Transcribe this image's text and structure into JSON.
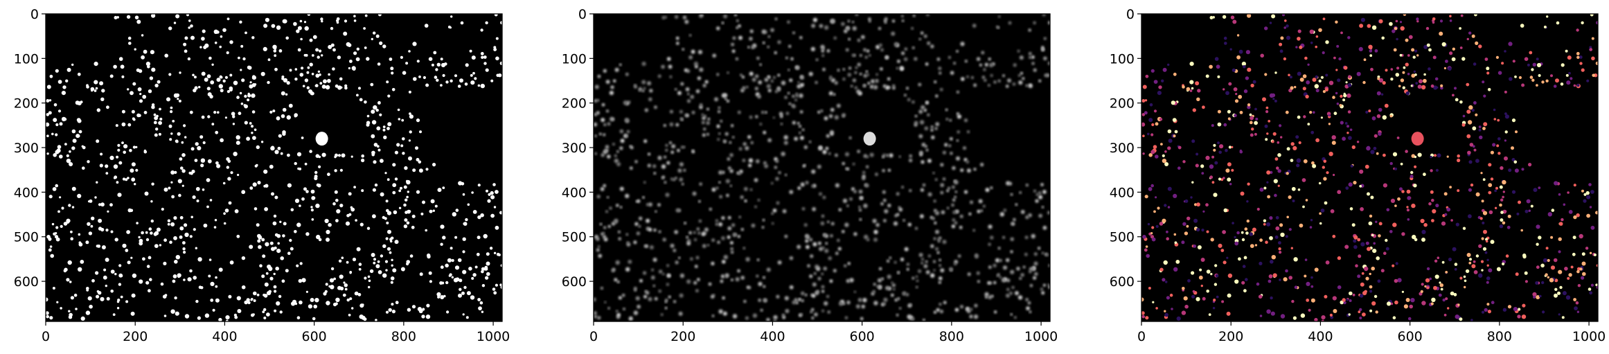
{
  "chart_data": [
    {
      "type": "heatmap",
      "title": "",
      "xlabel": "",
      "ylabel": "",
      "colormap": "binary",
      "xlim": [
        0,
        1020
      ],
      "ylim": [
        690,
        0
      ],
      "x_ticks": [
        "0",
        "200",
        "400",
        "600",
        "800",
        "1000"
      ],
      "y_ticks": [
        "0",
        "100",
        "200",
        "300",
        "400",
        "500",
        "600"
      ],
      "description_values": {
        "background": 0,
        "spots": 1
      },
      "bright_blob_center": [
        617,
        280
      ]
    },
    {
      "type": "heatmap",
      "title": "",
      "xlabel": "",
      "ylabel": "",
      "colormap": "gray",
      "xlim": [
        0,
        1020
      ],
      "ylim": [
        690,
        0
      ],
      "x_ticks": [
        "0",
        "200",
        "400",
        "600",
        "800",
        "1000"
      ],
      "y_ticks": [
        "0",
        "100",
        "200",
        "300",
        "400",
        "500",
        "600"
      ],
      "bright_blob_center": [
        617,
        280
      ]
    },
    {
      "type": "heatmap",
      "title": "",
      "xlabel": "",
      "ylabel": "",
      "colormap": "magma",
      "xlim": [
        0,
        1020
      ],
      "ylim": [
        690,
        0
      ],
      "x_ticks": [
        "0",
        "200",
        "400",
        "600",
        "800",
        "1000"
      ],
      "y_ticks": [
        "0",
        "100",
        "200",
        "300",
        "400",
        "500",
        "600"
      ],
      "bright_blob_center": [
        617,
        280
      ]
    }
  ],
  "colors": {
    "background": "#000000",
    "binary_spot": "#ffffff",
    "gray_spot": "#bdbdbd",
    "magma_palette": [
      "#fcfdbf",
      "#feb078",
      "#f1605d",
      "#b73779",
      "#721f81",
      "#2c115f"
    ]
  }
}
